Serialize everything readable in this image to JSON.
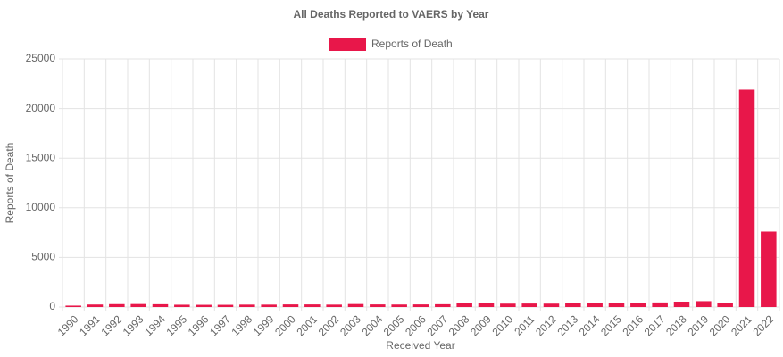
{
  "chart_data": {
    "type": "bar",
    "title": "All Deaths Reported to VAERS by Year",
    "x_label": "Received Year",
    "y_label": "Reports of Death",
    "categories": [
      "1990",
      "1991",
      "1992",
      "1993",
      "1994",
      "1995",
      "1996",
      "1997",
      "1998",
      "1999",
      "2000",
      "2001",
      "2002",
      "2003",
      "2004",
      "2005",
      "2006",
      "2007",
      "2008",
      "2009",
      "2010",
      "2011",
      "2012",
      "2013",
      "2014",
      "2015",
      "2016",
      "2017",
      "2018",
      "2019",
      "2020",
      "2021",
      "2022"
    ],
    "series": [
      {
        "name": "Reports of Death",
        "color": "#e8174a",
        "values": [
          140,
          250,
          290,
          300,
          280,
          230,
          220,
          220,
          240,
          240,
          260,
          260,
          240,
          300,
          260,
          250,
          260,
          280,
          380,
          360,
          340,
          350,
          340,
          380,
          380,
          390,
          430,
          460,
          540,
          590,
          420,
          21900,
          7600
        ]
      }
    ],
    "ylim": [
      0,
      25000
    ],
    "yticks": [
      0,
      5000,
      10000,
      15000,
      20000,
      25000
    ],
    "grid": true,
    "legend": "top"
  }
}
